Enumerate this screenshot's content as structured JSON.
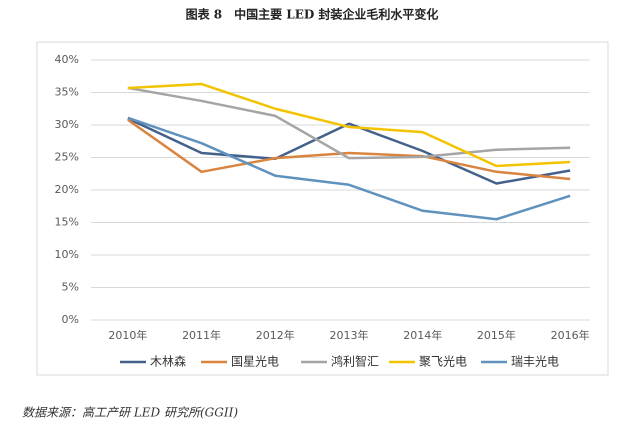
{
  "chart_data": {
    "type": "line",
    "title": "图表 8　中国主要 LED 封装企业毛利水平变化",
    "source": "数据来源：高工产研 LED 研究所(GGII)",
    "categories": [
      "2010年",
      "2011年",
      "2012年",
      "2013年",
      "2014年",
      "2015年",
      "2016年"
    ],
    "series": [
      {
        "name": "木林森",
        "color": "#44618b",
        "values": [
          31,
          25.7,
          24.8,
          30.2,
          26,
          21,
          23
        ]
      },
      {
        "name": "国星光电",
        "color": "#d9843f",
        "values": [
          30.8,
          22.8,
          24.9,
          25.7,
          25.2,
          22.8,
          21.7
        ]
      },
      {
        "name": "鸿利智汇",
        "color": "#a5a5a5",
        "values": [
          35.7,
          33.7,
          31.4,
          24.9,
          25.1,
          26.2,
          26.5
        ]
      },
      {
        "name": "聚飞光电",
        "color": "#f3c300",
        "values": [
          35.7,
          36.3,
          32.5,
          29.7,
          28.9,
          23.7,
          24.3
        ]
      },
      {
        "name": "瑞丰光电",
        "color": "#5f92bd",
        "values": [
          31.1,
          27.2,
          22.2,
          20.8,
          16.8,
          15.5,
          19.1
        ]
      }
    ],
    "ylim": [
      0,
      40
    ],
    "yticks": [
      {
        "value": 0,
        "label": "0%"
      },
      {
        "value": 5,
        "label": "5%"
      },
      {
        "value": 10,
        "label": "10%"
      },
      {
        "value": 15,
        "label": "15%"
      },
      {
        "value": 20,
        "label": "20%"
      },
      {
        "value": 25,
        "label": "25%"
      },
      {
        "value": 30,
        "label": "30%"
      },
      {
        "value": 35,
        "label": "35%"
      },
      {
        "value": 40,
        "label": "40%"
      }
    ],
    "grid": true
  }
}
